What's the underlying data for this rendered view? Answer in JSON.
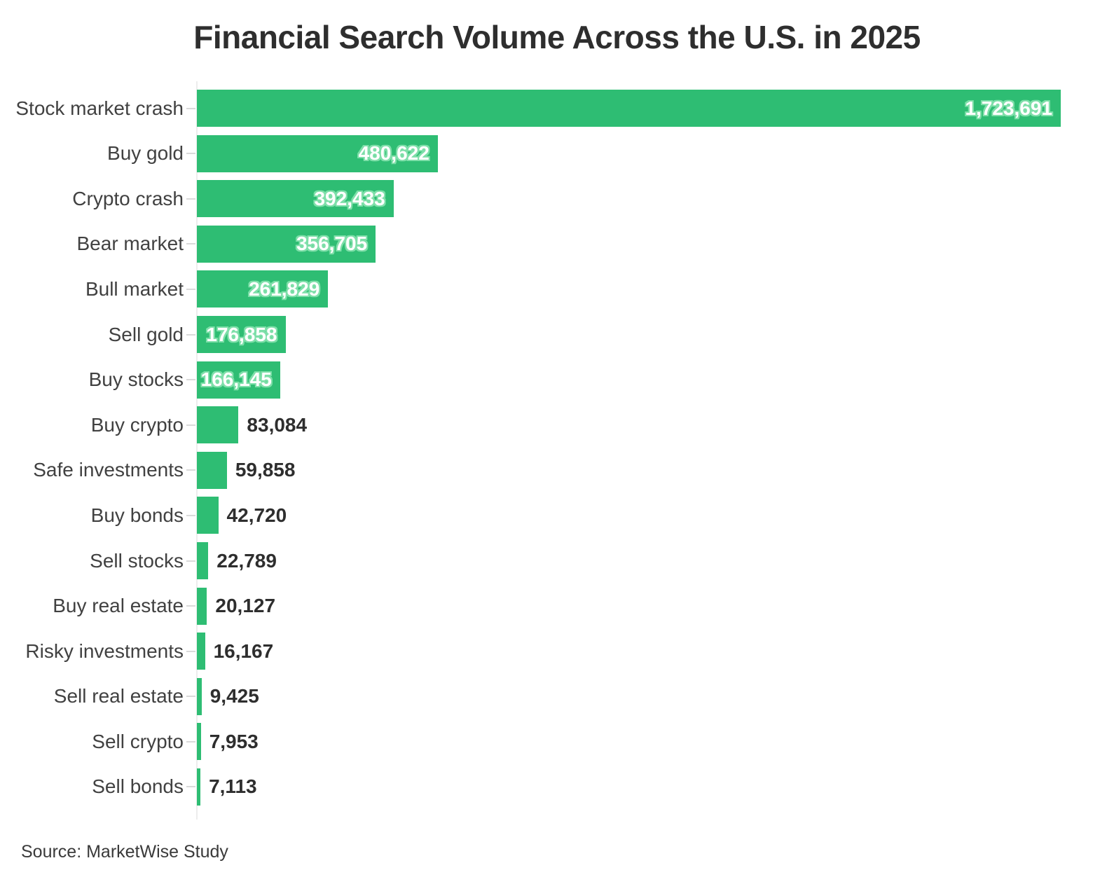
{
  "title": "Financial Search Volume Across the U.S. in 2025",
  "source": "Source: MarketWise Study",
  "colors": {
    "bar": "#2ebd73",
    "inside_value_text": "#ffffff",
    "inside_value_halo": "#7edfa9",
    "outside_value_text": "#2e2e2e",
    "category_text": "#414141",
    "title_text": "#2e2e2e",
    "axis_line": "#ededed",
    "background": "#ffffff"
  },
  "chart_data": {
    "type": "bar",
    "orientation": "horizontal",
    "title": "Financial Search Volume Across the U.S. in 2025",
    "source": "Source: MarketWise Study",
    "xlabel": "",
    "ylabel": "",
    "xlim": [
      0,
      1723691
    ],
    "grid": false,
    "legend": false,
    "categories": [
      "Stock market crash",
      "Buy gold",
      "Crypto crash",
      "Bear market",
      "Bull market",
      "Sell gold",
      "Buy stocks",
      "Buy crypto",
      "Safe investments",
      "Buy bonds",
      "Sell stocks",
      "Buy real estate",
      "Risky investments",
      "Sell real estate",
      "Sell crypto",
      "Sell bonds"
    ],
    "values": [
      1723691,
      480622,
      392433,
      356705,
      261829,
      176858,
      166145,
      83084,
      59858,
      42720,
      22789,
      20127,
      16167,
      9425,
      7953,
      7113
    ],
    "value_labels": [
      "1,723,691",
      "480,622",
      "392,433",
      "356,705",
      "261,829",
      "176,858",
      "166,145",
      "83,084",
      "59,858",
      "42,720",
      "22,789",
      "20,127",
      "16,167",
      "9,425",
      "7,953",
      "7,113"
    ],
    "value_label_positions": [
      "inside",
      "inside",
      "inside",
      "inside",
      "inside",
      "inside",
      "inside",
      "outside",
      "outside",
      "outside",
      "outside",
      "outside",
      "outside",
      "outside",
      "outside",
      "outside"
    ]
  }
}
